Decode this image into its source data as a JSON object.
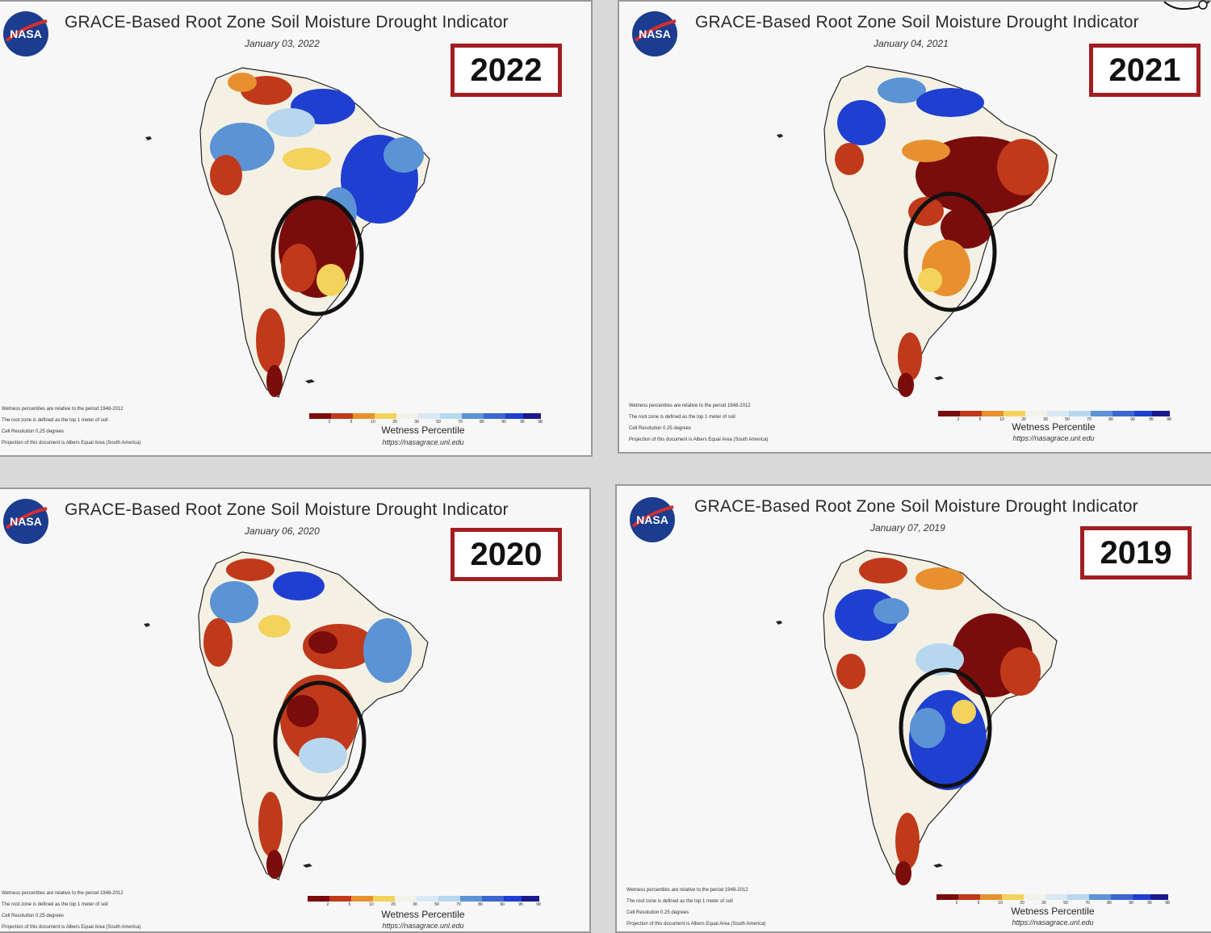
{
  "figure": {
    "title": "GRACE-Based Root Zone Soil Moisture Drought Indicator",
    "logo_text": "NASA",
    "legend_label": "Wetness Percentile",
    "legend_url": "https://nasagrace.unl.edu",
    "legend_ticks": [
      "2",
      "5",
      "10",
      "20",
      "30",
      "50",
      "70",
      "80",
      "90",
      "95",
      "98"
    ],
    "notes": [
      "Wetness percentiles are relative to the period 1948-2012",
      "The root zone is defined as the top 1 meter of soil",
      "Cell Resolution 0.25 degrees",
      "Projection of this document is Albers Equal Area (South America)"
    ],
    "colors": {
      "extreme_dry": "#7a0c0c",
      "dry": "#c0391b",
      "moderate_dry": "#e8902f",
      "slight_dry": "#f3d35b",
      "normal": "#f2f2ea",
      "slight_wet": "#b7d7ee",
      "wet": "#5b93d4",
      "very_wet": "#1f3fd0",
      "extreme_wet": "#1a1a8c",
      "year_border": "#a11d22"
    }
  },
  "panels": [
    {
      "year": "2022",
      "date": "January 03, 2022",
      "highlight": "drought"
    },
    {
      "year": "2021",
      "date": "January 04, 2021",
      "highlight": "drought"
    },
    {
      "year": "2020",
      "date": "January 06, 2020",
      "highlight": "drought"
    },
    {
      "year": "2019",
      "date": "January 07, 2019",
      "highlight": "wet"
    }
  ]
}
